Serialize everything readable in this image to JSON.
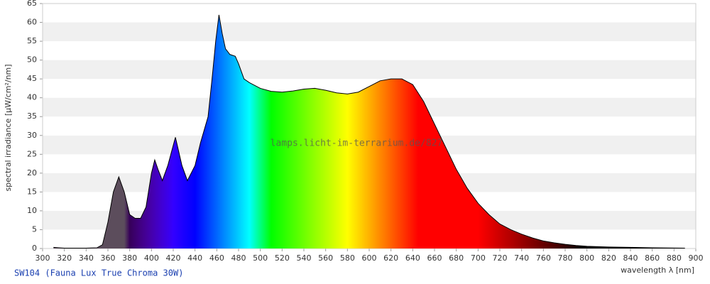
{
  "chart_data": {
    "type": "area",
    "title": "SW104 (Fauna Lux True Chroma 30W)",
    "annotation": "lamps.licht-im-terrarium.de/827",
    "xlabel": "wavelength λ [nm]",
    "ylabel": "spectral irradiance [µW/cm²/nm]",
    "x": [
      310,
      315,
      320,
      330,
      340,
      350,
      355,
      360,
      365,
      370,
      375,
      380,
      385,
      390,
      395,
      400,
      403,
      406,
      410,
      415,
      422,
      428,
      433,
      440,
      445,
      452,
      456,
      459,
      462,
      465,
      468,
      472,
      477,
      480,
      485,
      490,
      500,
      510,
      520,
      530,
      540,
      550,
      560,
      570,
      580,
      590,
      600,
      610,
      620,
      630,
      640,
      650,
      660,
      670,
      680,
      690,
      700,
      710,
      720,
      730,
      740,
      750,
      760,
      770,
      780,
      790,
      800,
      820,
      840,
      860,
      890
    ],
    "values": [
      0.3,
      0.2,
      0.1,
      0.1,
      0.1,
      0.2,
      1,
      7,
      15,
      19,
      15,
      9,
      8,
      8,
      11,
      20,
      23.5,
      21,
      18,
      22,
      29.5,
      22,
      18,
      22,
      28,
      35,
      46,
      55,
      62,
      57,
      53,
      51.5,
      51,
      49,
      45,
      44,
      42.5,
      41.7,
      41.5,
      41.8,
      42.3,
      42.5,
      42,
      41.3,
      41,
      41.5,
      43,
      44.5,
      45,
      45,
      43.5,
      39,
      33,
      27,
      21,
      16,
      12,
      9,
      6.5,
      5,
      3.8,
      2.8,
      2,
      1.5,
      1.1,
      0.8,
      0.6,
      0.4,
      0.3,
      0.2,
      0.1
    ],
    "color": "#000000",
    "xlim": [
      300,
      900
    ],
    "xticks": [
      300,
      320,
      340,
      360,
      380,
      400,
      420,
      440,
      460,
      480,
      500,
      520,
      540,
      560,
      580,
      600,
      620,
      640,
      660,
      680,
      700,
      720,
      740,
      760,
      780,
      800,
      820,
      840,
      860,
      880,
      900
    ],
    "ylim": [
      0,
      65
    ],
    "yticks": [
      0,
      5,
      10,
      15,
      20,
      25,
      30,
      35,
      40,
      45,
      50,
      55,
      60,
      65
    ],
    "grid": true
  }
}
